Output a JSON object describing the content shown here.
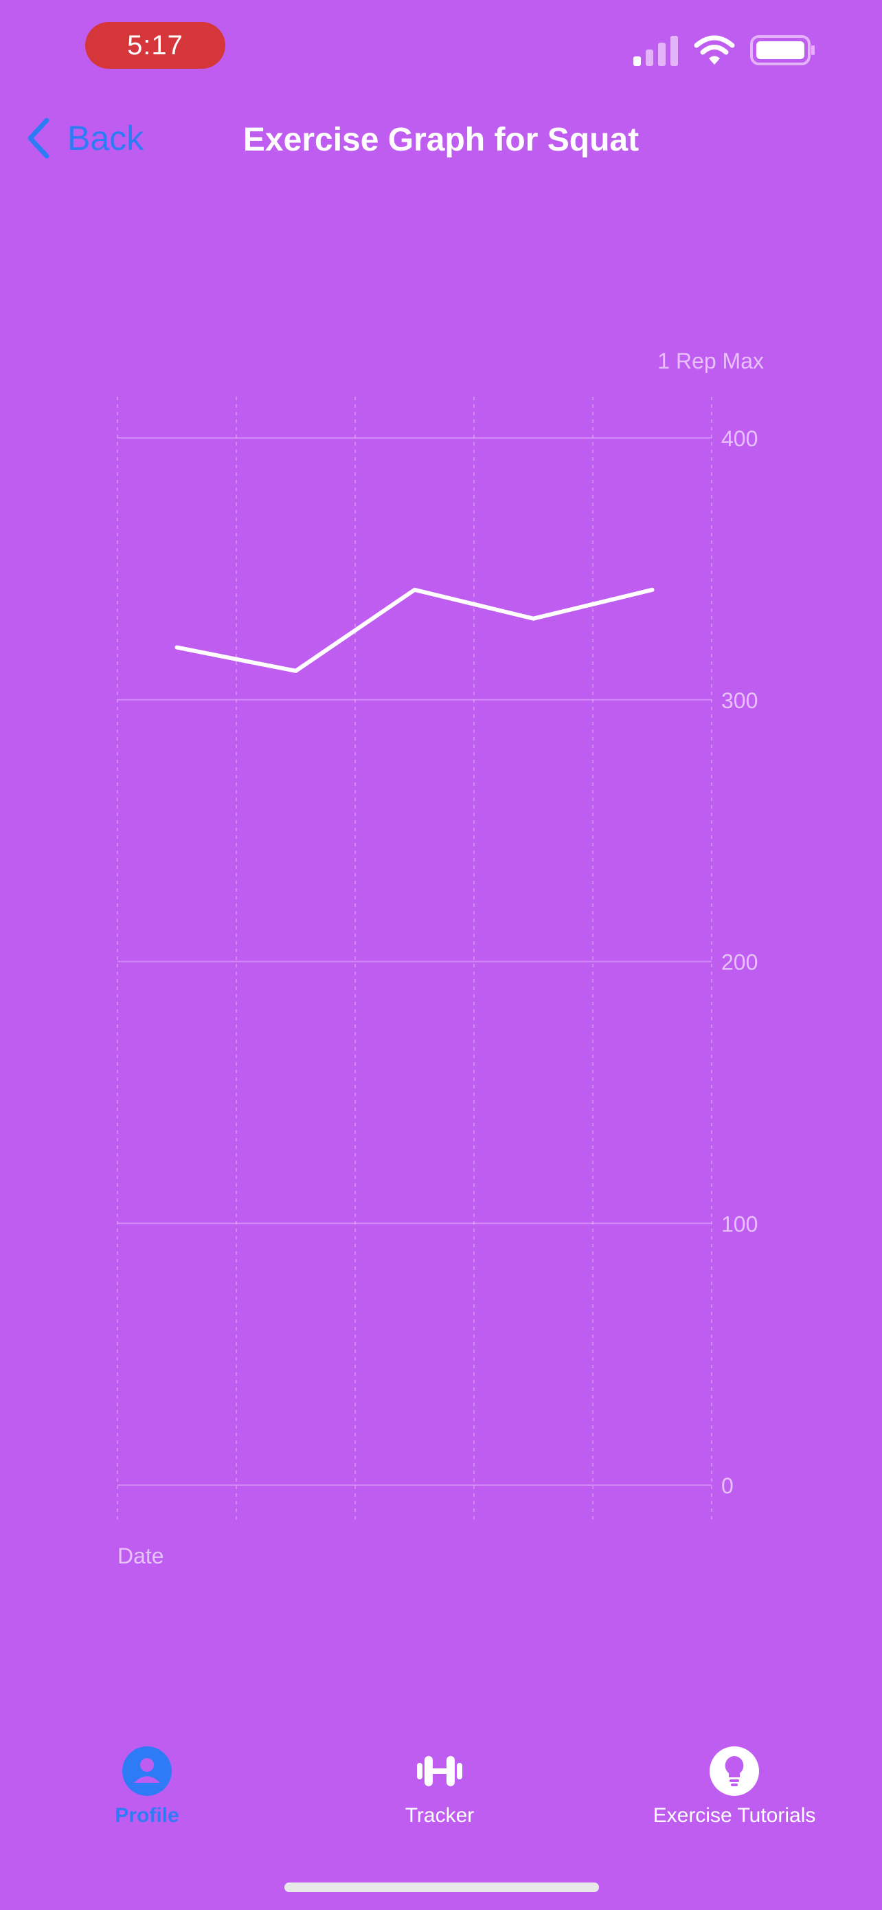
{
  "status_bar": {
    "time": "5:17",
    "icons": [
      "cellular-signal-icon",
      "wifi-icon",
      "battery-icon"
    ]
  },
  "nav": {
    "back_label": "Back",
    "back_icon": "chevron-left-icon",
    "title": "Exercise Graph for Squat"
  },
  "chart_data": {
    "type": "line",
    "title": "",
    "xlabel": "Date",
    "ylabel": "1 Rep Max",
    "ylim": [
      0,
      400
    ],
    "y_ticks": [
      "400",
      "300",
      "200",
      "100",
      "0"
    ],
    "grid": true,
    "series": [
      {
        "values": [
          320,
          311,
          342,
          331,
          342
        ]
      }
    ],
    "line_color": "#ffffff"
  },
  "tabbar": {
    "tabs": [
      {
        "label": "Profile",
        "icon": "person-icon",
        "active": true
      },
      {
        "label": "Tracker",
        "icon": "dumbbell-icon",
        "active": false
      },
      {
        "label": "Exercise Tutorials",
        "icon": "lightbulb-icon",
        "active": false
      }
    ]
  },
  "colors": {
    "background": "#c05df1",
    "accent": "#2d7cf6",
    "time_pill": "#d4363a"
  }
}
